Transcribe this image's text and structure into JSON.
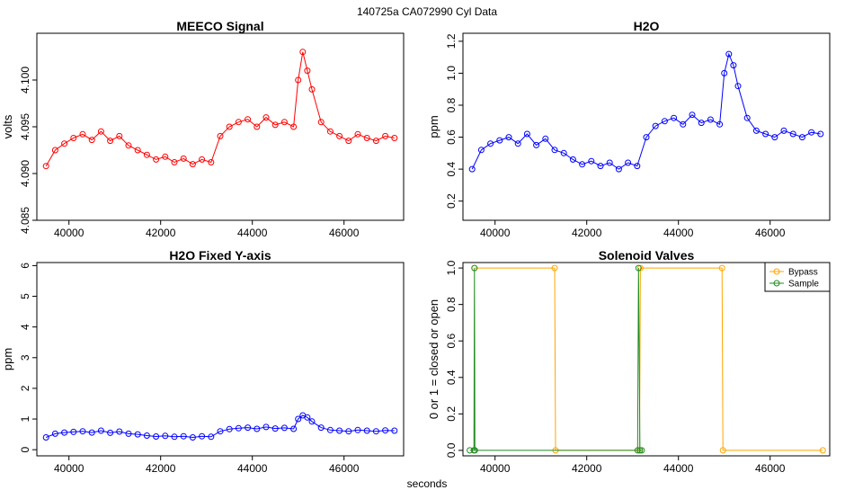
{
  "figure": {
    "header": "140725a    CA072990    Cyl Data",
    "footer": "seconds"
  },
  "chart_data": [
    {
      "type": "line",
      "title": "MEECO Signal",
      "xlabel": "",
      "ylabel": "volts",
      "xlim": [
        39300,
        47300
      ],
      "ylim": [
        4.085,
        4.105
      ],
      "xticks": [
        40000,
        42000,
        44000,
        46000
      ],
      "yticks": [
        4.085,
        4.09,
        4.095,
        4.1
      ],
      "ytick_labels": [
        "4.085",
        "4.090",
        "4.095",
        "4.100"
      ],
      "series": [
        {
          "color": "#ff0000",
          "x": [
            39500,
            39700,
            39900,
            40100,
            40300,
            40500,
            40700,
            40900,
            41100,
            41300,
            41500,
            41700,
            41900,
            42100,
            42300,
            42500,
            42700,
            42900,
            43100,
            43300,
            43500,
            43700,
            43900,
            44100,
            44300,
            44500,
            44700,
            44900,
            45000,
            45100,
            45200,
            45300,
            45500,
            45700,
            45900,
            46100,
            46300,
            46500,
            46700,
            46900,
            47100
          ],
          "y": [
            4.0908,
            4.0925,
            4.0932,
            4.0938,
            4.0942,
            4.0936,
            4.0945,
            4.0935,
            4.094,
            4.093,
            4.0925,
            4.092,
            4.0915,
            4.0918,
            4.0912,
            4.0916,
            4.091,
            4.0915,
            4.0912,
            4.094,
            4.095,
            4.0955,
            4.0958,
            4.095,
            4.096,
            4.0952,
            4.0955,
            4.095,
            4.1,
            4.103,
            4.101,
            4.099,
            4.0955,
            4.0945,
            4.094,
            4.0935,
            4.0942,
            4.0938,
            4.0935,
            4.094,
            4.0938
          ]
        }
      ]
    },
    {
      "type": "line",
      "title": "H2O",
      "xlabel": "",
      "ylabel": "ppm",
      "xlim": [
        39300,
        47300
      ],
      "ylim": [
        0.08,
        1.25
      ],
      "xticks": [
        40000,
        42000,
        44000,
        46000
      ],
      "yticks": [
        0.2,
        0.4,
        0.6,
        0.8,
        1.0,
        1.2
      ],
      "ytick_labels": [
        "0.2",
        "0.4",
        "0.6",
        "0.8",
        "1.0",
        "1.2"
      ],
      "series": [
        {
          "color": "#0000ff",
          "x": [
            39500,
            39700,
            39900,
            40100,
            40300,
            40500,
            40700,
            40900,
            41100,
            41300,
            41500,
            41700,
            41900,
            42100,
            42300,
            42500,
            42700,
            42900,
            43100,
            43300,
            43500,
            43700,
            43900,
            44100,
            44300,
            44500,
            44700,
            44900,
            45000,
            45100,
            45200,
            45300,
            45500,
            45700,
            45900,
            46100,
            46300,
            46500,
            46700,
            46900,
            47100
          ],
          "y": [
            0.4,
            0.52,
            0.56,
            0.58,
            0.6,
            0.56,
            0.62,
            0.55,
            0.59,
            0.52,
            0.5,
            0.46,
            0.43,
            0.45,
            0.42,
            0.44,
            0.4,
            0.44,
            0.42,
            0.6,
            0.67,
            0.7,
            0.72,
            0.68,
            0.74,
            0.69,
            0.71,
            0.68,
            1.0,
            1.12,
            1.05,
            0.92,
            0.72,
            0.64,
            0.62,
            0.6,
            0.64,
            0.62,
            0.6,
            0.63,
            0.62
          ]
        }
      ]
    },
    {
      "type": "line",
      "title": "H2O Fixed Y-axis",
      "xlabel": "",
      "ylabel": "ppm",
      "xlim": [
        39300,
        47300
      ],
      "ylim": [
        -0.2,
        6.1
      ],
      "xticks": [
        40000,
        42000,
        44000,
        46000
      ],
      "yticks": [
        0,
        1,
        2,
        3,
        4,
        5,
        6
      ],
      "ytick_labels": [
        "0",
        "1",
        "2",
        "3",
        "4",
        "5",
        "6"
      ],
      "series": [
        {
          "color": "#0000ff",
          "x": [
            39500,
            39700,
            39900,
            40100,
            40300,
            40500,
            40700,
            40900,
            41100,
            41300,
            41500,
            41700,
            41900,
            42100,
            42300,
            42500,
            42700,
            42900,
            43100,
            43300,
            43500,
            43700,
            43900,
            44100,
            44300,
            44500,
            44700,
            44900,
            45000,
            45100,
            45200,
            45300,
            45500,
            45700,
            45900,
            46100,
            46300,
            46500,
            46700,
            46900,
            47100
          ],
          "y": [
            0.4,
            0.52,
            0.56,
            0.58,
            0.6,
            0.56,
            0.62,
            0.55,
            0.59,
            0.52,
            0.5,
            0.46,
            0.43,
            0.45,
            0.42,
            0.44,
            0.4,
            0.44,
            0.42,
            0.6,
            0.67,
            0.7,
            0.72,
            0.68,
            0.74,
            0.69,
            0.71,
            0.68,
            1.0,
            1.12,
            1.05,
            0.92,
            0.72,
            0.64,
            0.62,
            0.6,
            0.64,
            0.62,
            0.6,
            0.63,
            0.62
          ]
        }
      ]
    },
    {
      "type": "line",
      "title": "Solenoid Valves",
      "xlabel": "",
      "ylabel": "0 or 1 = closed or open",
      "xlim": [
        39300,
        47300
      ],
      "ylim": [
        -0.03,
        1.03
      ],
      "xticks": [
        40000,
        42000,
        44000,
        46000
      ],
      "yticks": [
        0.0,
        0.2,
        0.4,
        0.6,
        0.8,
        1.0
      ],
      "ytick_labels": [
        "0.0",
        "0.2",
        "0.4",
        "0.6",
        "0.8",
        "1.0"
      ],
      "legend": "top-right",
      "series": [
        {
          "name": "Bypass",
          "color": "#ffa500",
          "x": [
            39550,
            41300,
            41320,
            43150,
            43170,
            44950,
            44970,
            47150
          ],
          "y": [
            1,
            1,
            0,
            0,
            1,
            1,
            0,
            0
          ]
        },
        {
          "name": "Sample",
          "color": "#228b22",
          "x": [
            39450,
            39540,
            39550,
            39560,
            43110,
            43130,
            43160,
            43200
          ],
          "y": [
            0,
            0,
            1,
            0,
            0,
            1,
            0,
            0
          ]
        }
      ]
    }
  ]
}
